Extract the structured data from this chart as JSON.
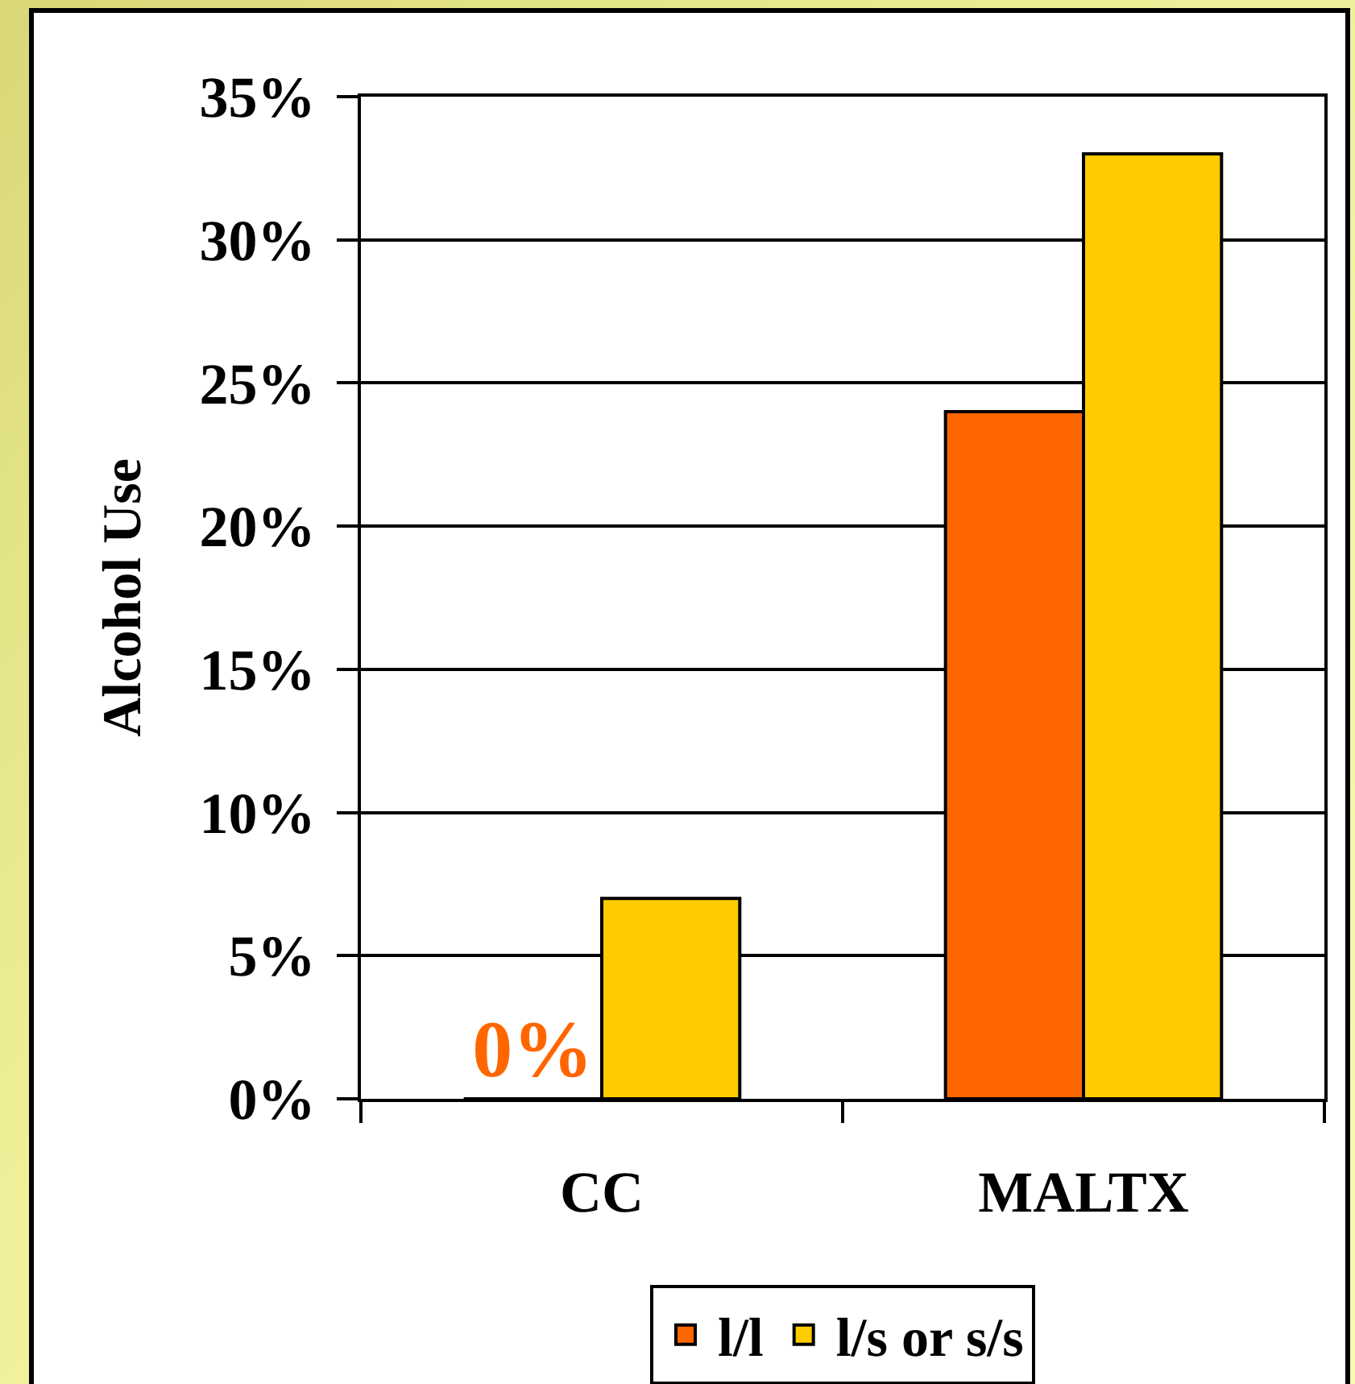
{
  "chart_data": {
    "type": "bar",
    "ylabel": "Alcohol Use",
    "categories": [
      "CC",
      "MALTX"
    ],
    "series": [
      {
        "name": "l/l",
        "color": "#ff6600",
        "values": [
          0,
          24
        ],
        "value_labels": [
          "0%",
          null
        ]
      },
      {
        "name": "l/s or s/s",
        "color": "#ffcc00",
        "values": [
          7,
          33
        ]
      }
    ],
    "ylim": [
      0,
      35
    ],
    "yticks": [
      {
        "value": 0,
        "label": "0%"
      },
      {
        "value": 5,
        "label": "5%"
      },
      {
        "value": 10,
        "label": "10%"
      },
      {
        "value": 15,
        "label": "15%"
      },
      {
        "value": 20,
        "label": "20%"
      },
      {
        "value": 25,
        "label": "25%"
      },
      {
        "value": 30,
        "label": "30%"
      },
      {
        "value": 35,
        "label": "35%"
      }
    ],
    "grid": "y",
    "legend": "bottom"
  }
}
